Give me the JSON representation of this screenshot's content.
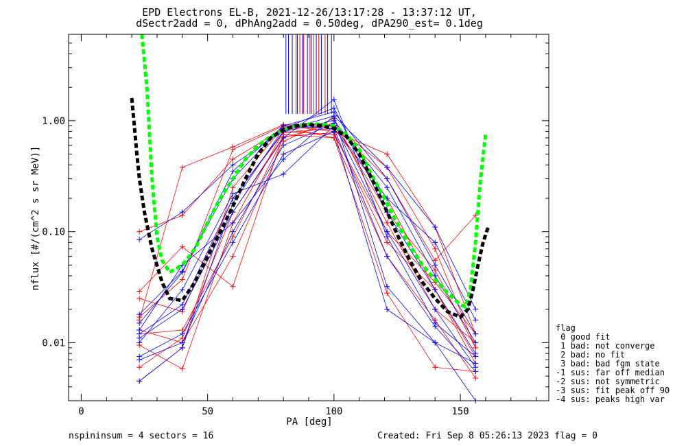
{
  "title_line1": "EPD Electrons EL-B, 2021-12-26/13:17:28 - 13:37:12 UT,",
  "title_line2": "dSectr2add = 0, dPhAng2add = 0.50deg, dPA290_est=   0.1deg",
  "footer_left": "nspininsum =  4  sectors = 16",
  "footer_right": "Created: Fri Sep  8 05:26:13 2023   flag = 0",
  "legend": {
    "title": "flag",
    "items": [
      " 0 good fit",
      " 1 bad: not converge",
      " 2 bad: no fit",
      " 3 bad: bad fgm state",
      "-1 sus: far off median",
      "-2 sus: not symmetric",
      "-3 sus: fit peak off 90",
      "-4 sus: peaks high var"
    ]
  },
  "colors": {
    "red": "#ff0000",
    "blue": "#0000ff",
    "green": "#00ff00",
    "black": "#000000"
  },
  "chart_data": {
    "type": "line",
    "xlabel": "PA [deg]",
    "ylabel": "nflux [#/(cm^2 s sr MeV)]",
    "xlim": [
      -5,
      185
    ],
    "ylim": [
      0.003,
      6
    ],
    "yscale": "log",
    "x_ticks": [
      0,
      50,
      100,
      150
    ],
    "x_tick_labels": [
      "0",
      "50",
      "100",
      "150"
    ],
    "y_ticks": [
      0.01,
      0.1,
      1.0
    ],
    "y_tick_labels": [
      "0.01",
      "0.10",
      "1.00"
    ],
    "grid": false,
    "series": [
      {
        "color": "red",
        "x": [
          23,
          40,
          60,
          80,
          100,
          121,
          140,
          156
        ],
        "y": [
          0.017,
          0.037,
          0.55,
          0.9,
          0.8,
          0.5,
          0.11,
          0.012
        ]
      },
      {
        "color": "red",
        "x": [
          23,
          40,
          60,
          80,
          100,
          121,
          140,
          156
        ],
        "y": [
          0.1,
          0.14,
          0.45,
          0.85,
          0.9,
          0.38,
          0.07,
          0.009
        ]
      },
      {
        "color": "red",
        "x": [
          23,
          40,
          60,
          80,
          100,
          121,
          140,
          156
        ],
        "y": [
          0.029,
          0.073,
          0.032,
          0.75,
          0.7,
          0.028,
          0.006,
          0.0055
        ]
      },
      {
        "color": "red",
        "x": [
          23,
          40,
          60,
          80,
          100,
          121,
          140,
          156
        ],
        "y": [
          0.025,
          0.019,
          0.2,
          0.78,
          0.85,
          0.2,
          0.03,
          0.0075
        ]
      },
      {
        "color": "red",
        "x": [
          23,
          40,
          60,
          80,
          100,
          121,
          140,
          156
        ],
        "y": [
          0.0095,
          0.0058,
          0.12,
          0.8,
          0.75,
          0.1,
          0.035,
          0.012
        ]
      },
      {
        "color": "red",
        "x": [
          23,
          40,
          60,
          80,
          100,
          121,
          140,
          156
        ],
        "y": [
          0.012,
          0.013,
          0.09,
          0.7,
          0.95,
          0.15,
          0.045,
          0.009
        ]
      },
      {
        "color": "red",
        "x": [
          23,
          40,
          60,
          80,
          100,
          121,
          140,
          156
        ],
        "y": [
          0.006,
          0.011,
          0.15,
          0.72,
          0.78,
          0.08,
          0.03,
          0.0065
        ]
      },
      {
        "color": "red",
        "x": [
          23,
          40,
          60,
          80,
          100,
          121,
          140,
          156
        ],
        "y": [
          0.0045,
          0.009,
          0.25,
          0.88,
          0.7,
          0.06,
          0.016,
          0.0048
        ]
      },
      {
        "color": "red",
        "x": [
          23,
          40,
          60,
          80,
          100,
          121,
          140,
          156
        ],
        "y": [
          0.016,
          0.38,
          0.58,
          0.92,
          0.9,
          0.3,
          0.055,
          0.14
        ]
      },
      {
        "color": "red",
        "x": [
          23,
          40,
          60,
          80,
          100,
          121,
          140,
          156
        ],
        "y": [
          0.013,
          0.01,
          0.06,
          0.65,
          1.05,
          0.12,
          0.02,
          0.01
        ]
      },
      {
        "color": "blue",
        "x": [
          23,
          40,
          60,
          80,
          100,
          121,
          140,
          156
        ],
        "y": [
          0.085,
          0.15,
          0.4,
          0.82,
          1.1,
          0.38,
          0.11,
          0.02
        ]
      },
      {
        "color": "blue",
        "x": [
          23,
          40,
          60,
          80,
          100,
          121,
          140,
          156
        ],
        "y": [
          0.018,
          0.044,
          0.3,
          0.9,
          1.2,
          0.3,
          0.05,
          0.012
        ]
      },
      {
        "color": "blue",
        "x": [
          23,
          40,
          60,
          80,
          100,
          121,
          140,
          156
        ],
        "y": [
          0.012,
          0.022,
          0.2,
          0.8,
          1.0,
          0.25,
          0.04,
          0.01
        ]
      },
      {
        "color": "blue",
        "x": [
          23,
          40,
          60,
          80,
          100,
          121,
          140,
          156
        ],
        "y": [
          0.007,
          0.01,
          0.1,
          0.6,
          0.95,
          0.1,
          0.02,
          0.006
        ]
      },
      {
        "color": "blue",
        "x": [
          23,
          40,
          60,
          80,
          100,
          121,
          140,
          156
        ],
        "y": [
          0.0045,
          0.009,
          0.18,
          0.85,
          1.3,
          0.15,
          0.03,
          0.008
        ]
      },
      {
        "color": "blue",
        "x": [
          23,
          40,
          60,
          80,
          100,
          121,
          140,
          156
        ],
        "y": [
          0.01,
          0.03,
          0.22,
          0.33,
          0.9,
          0.2,
          0.08,
          0.016
        ]
      },
      {
        "color": "blue",
        "x": [
          23,
          40,
          60,
          80,
          100,
          121,
          140,
          156
        ],
        "y": [
          0.011,
          0.02,
          0.15,
          0.7,
          1.55,
          0.09,
          0.015,
          0.0075
        ]
      },
      {
        "color": "blue",
        "x": [
          23,
          40,
          60,
          80,
          100,
          121,
          140,
          156
        ],
        "y": [
          0.0075,
          0.012,
          0.08,
          0.5,
          0.8,
          0.02,
          0.01,
          0.003
        ]
      },
      {
        "color": "blue",
        "x": [
          23,
          40,
          60,
          80,
          100,
          121,
          140,
          156
        ],
        "y": [
          0.015,
          0.043,
          0.35,
          0.9,
          0.85,
          0.06,
          0.014,
          0.0055
        ]
      },
      {
        "color": "blue",
        "x": [
          23,
          40,
          60,
          80,
          100,
          121,
          140,
          156
        ],
        "y": [
          0.013,
          0.05,
          0.12,
          0.45,
          1.1,
          0.032,
          0.01,
          0.0065
        ]
      },
      {
        "color": "green",
        "style": "dashed-thick",
        "x": [
          24,
          26,
          28,
          30,
          32,
          35,
          40,
          45,
          50,
          55,
          60,
          65,
          70,
          75,
          80,
          85,
          90,
          95,
          100,
          105,
          110,
          115,
          120,
          125,
          130,
          135,
          140,
          145,
          150,
          152,
          154,
          156,
          158,
          160
        ],
        "y": [
          8,
          2,
          0.3,
          0.09,
          0.055,
          0.043,
          0.05,
          0.07,
          0.12,
          0.2,
          0.3,
          0.45,
          0.6,
          0.72,
          0.83,
          0.9,
          0.93,
          0.93,
          0.9,
          0.75,
          0.55,
          0.32,
          0.2,
          0.12,
          0.075,
          0.05,
          0.037,
          0.028,
          0.022,
          0.021,
          0.03,
          0.08,
          0.3,
          0.75
        ]
      },
      {
        "color": "black",
        "style": "dashed-thick",
        "x": [
          20,
          21,
          22,
          23,
          25,
          28,
          32,
          35,
          40,
          45,
          50,
          55,
          60,
          65,
          70,
          75,
          80,
          85,
          90,
          95,
          100,
          105,
          110,
          115,
          120,
          125,
          130,
          135,
          140,
          145,
          150,
          153,
          155,
          157,
          159,
          161
        ],
        "y": [
          1.6,
          0.9,
          0.5,
          0.3,
          0.15,
          0.07,
          0.035,
          0.025,
          0.024,
          0.035,
          0.06,
          0.1,
          0.17,
          0.3,
          0.5,
          0.7,
          0.83,
          0.9,
          0.92,
          0.9,
          0.85,
          0.72,
          0.5,
          0.3,
          0.17,
          0.095,
          0.055,
          0.035,
          0.025,
          0.019,
          0.017,
          0.02,
          0.03,
          0.05,
          0.08,
          0.11
        ]
      }
    ],
    "bars_above_axis": {
      "y_bottom": 1.15,
      "y_top": 6,
      "red_x": [
        85,
        86.5,
        88,
        90.5,
        92,
        94,
        96.5
      ],
      "blue_x": [
        81,
        82,
        83.5,
        85.5,
        87.5,
        89.5,
        91,
        93,
        95,
        97.5,
        99
      ]
    }
  }
}
